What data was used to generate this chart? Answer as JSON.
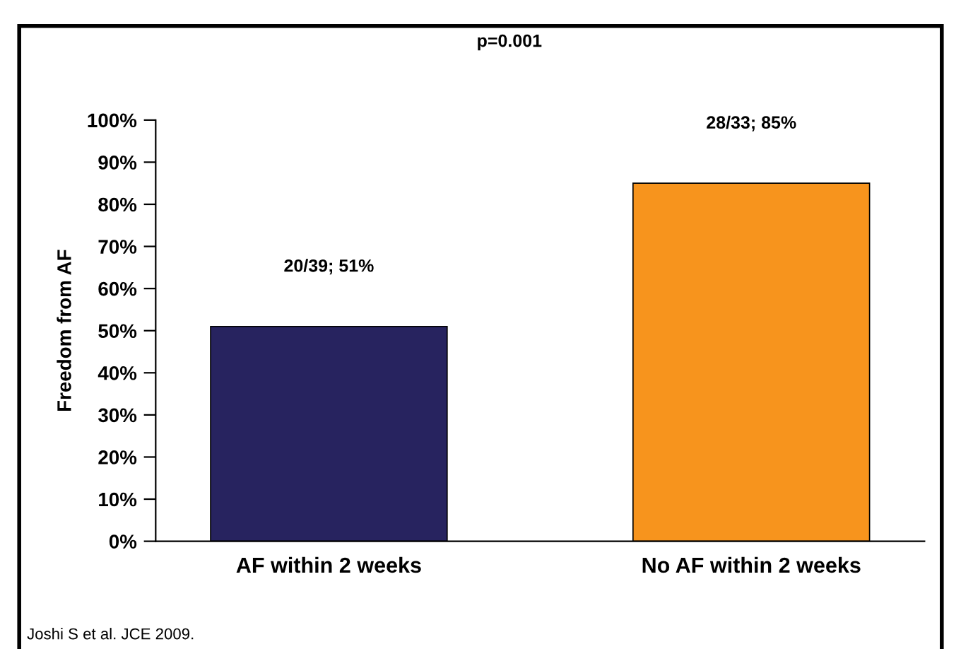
{
  "chart_data": {
    "type": "bar",
    "ylabel": "Freedom from AF",
    "categories": [
      "AF within 2 weeks",
      "No AF within 2 weeks"
    ],
    "values": [
      51,
      85
    ],
    "colors": [
      "#27235f",
      "#f7941d"
    ],
    "value_labels": [
      "20/39; 51%",
      "28/33; 85%"
    ],
    "ylim": [
      0,
      100
    ],
    "yticks": [
      {
        "value": 0,
        "label": "0%"
      },
      {
        "value": 10,
        "label": "10%"
      },
      {
        "value": 20,
        "label": "20%"
      },
      {
        "value": 30,
        "label": "30%"
      },
      {
        "value": 40,
        "label": "40%"
      },
      {
        "value": 50,
        "label": "50%"
      },
      {
        "value": 60,
        "label": "60%"
      },
      {
        "value": 70,
        "label": "70%"
      },
      {
        "value": 80,
        "label": "80%"
      },
      {
        "value": 90,
        "label": "90%"
      },
      {
        "value": 100,
        "label": "100%"
      }
    ],
    "grid": false,
    "legend": false,
    "annotations": [
      "p=0.001",
      "Joshi S et al. JCE 2009."
    ]
  }
}
